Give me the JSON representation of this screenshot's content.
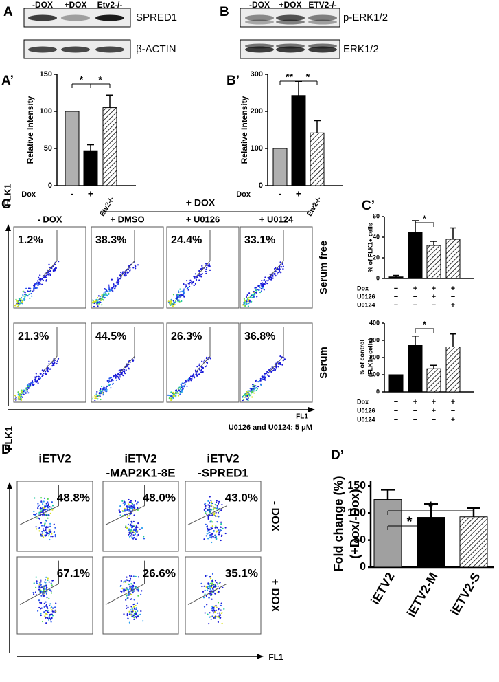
{
  "blots": [
    {
      "label": "A",
      "lanes": [
        "-DOX",
        "+DOX",
        "Etv2-/-"
      ],
      "bands": [
        "SPRED1",
        "β-ACTIN"
      ]
    },
    {
      "label": "B",
      "lanes": [
        "-DOX",
        "+DOX",
        "ETV2-/-"
      ],
      "bands": [
        "p-ERK1/2",
        "ERK1/2"
      ]
    }
  ],
  "flow": [
    {
      "label": "C",
      "group_header": "+ DOX",
      "columns": [
        [
          "- DOX"
        ],
        [
          "+ DMSO"
        ],
        [
          "+ U0126"
        ],
        [
          "+ U0124"
        ]
      ],
      "rows": [
        {
          "label": "Serum free",
          "percentages": [
            "1.2%",
            "38.3%",
            "24.4%",
            "33.1%"
          ]
        },
        {
          "label": "Serum",
          "percentages": [
            "21.3%",
            "44.5%",
            "26.3%",
            "36.8%"
          ]
        }
      ],
      "y_axis": "FLK1",
      "x_axis": "FL1",
      "note": "U0126 and U0124: 5 μM"
    },
    {
      "label": "D",
      "columns": [
        [
          "iETV2"
        ],
        [
          "iETV2",
          "-MAP2K1-8E"
        ],
        [
          "iETV2",
          "-SPRED1"
        ]
      ],
      "rows": [
        {
          "label": "- DOX",
          "percentages": [
            "48.8%",
            "48.0%",
            "43.0%"
          ]
        },
        {
          "label": "+ DOX",
          "percentages": [
            "67.1%",
            "26.6%",
            "35.1%"
          ]
        }
      ],
      "y_axis": "FLK1",
      "x_axis": "FL1"
    }
  ],
  "chart_data": [
    {
      "type": "bar",
      "panel": "A’",
      "ylabel": [
        "Relative Intensity"
      ],
      "row_label": "Dox",
      "categories": [
        "-",
        "+",
        "Etv2-/-"
      ],
      "values": [
        100,
        47,
        105
      ],
      "errors": [
        0,
        8,
        17
      ],
      "colors": [
        "#b0b0b0",
        "#000000",
        "#ffffff"
      ],
      "hatched": [
        false,
        false,
        true
      ],
      "ylim": [
        0,
        150
      ],
      "yticks": [
        0,
        50,
        100,
        150
      ],
      "significance": [
        "*",
        "*"
      ]
    },
    {
      "type": "bar",
      "panel": "B’",
      "ylabel": [
        "Relative Intensity"
      ],
      "row_label": "Dox",
      "categories": [
        "-",
        "+",
        "Etv2-/-"
      ],
      "values": [
        100,
        243,
        142
      ],
      "errors": [
        0,
        38,
        33
      ],
      "colors": [
        "#b0b0b0",
        "#000000",
        "#ffffff"
      ],
      "hatched": [
        false,
        false,
        true
      ],
      "ylim": [
        0,
        300
      ],
      "yticks": [
        0,
        100,
        200,
        300
      ],
      "significance": [
        "**",
        "*"
      ]
    },
    {
      "type": "bar",
      "panel": "C’",
      "ylabel": [
        "% of FLK1+ cells"
      ],
      "values": [
        1.5,
        45,
        32,
        38
      ],
      "errors": [
        1.5,
        11,
        4,
        11
      ],
      "colors": [
        "#000000",
        "#000000",
        "#ffffff",
        "#ffffff"
      ],
      "hatched": [
        false,
        false,
        true,
        true
      ],
      "ylim": [
        0,
        60
      ],
      "yticks": [
        0,
        20,
        40,
        60
      ],
      "significance": [
        "*"
      ],
      "table": [
        {
          "label": "Dox",
          "cells": [
            "−",
            "+",
            "+",
            "+"
          ]
        },
        {
          "label": "U0126",
          "cells": [
            "−",
            "−",
            "+",
            "−"
          ]
        },
        {
          "label": "U0124",
          "cells": [
            "−",
            "−",
            "−",
            "+"
          ]
        }
      ]
    },
    {
      "type": "bar",
      "ylabel": [
        "% of control",
        "(FLK1+ cells)"
      ],
      "values": [
        100,
        270,
        135,
        262
      ],
      "errors": [
        0,
        55,
        20,
        75
      ],
      "colors": [
        "#000000",
        "#000000",
        "#ffffff",
        "#ffffff"
      ],
      "hatched": [
        false,
        false,
        true,
        true
      ],
      "ylim": [
        0,
        400
      ],
      "yticks": [
        0,
        100,
        200,
        300,
        400
      ],
      "significance": [
        "*"
      ],
      "table": [
        {
          "label": "Dox",
          "cells": [
            "−",
            "+",
            "+",
            "+"
          ]
        },
        {
          "label": "U0126",
          "cells": [
            "−",
            "−",
            "+",
            "−"
          ]
        },
        {
          "label": "U0124",
          "cells": [
            "−",
            "−",
            "−",
            "+"
          ]
        }
      ]
    },
    {
      "type": "bar",
      "panel": "D’",
      "ylabel": [
        "Fold change (%)",
        "(+Dox/-Dox)"
      ],
      "categories": [
        "iETV2",
        "iETV2-M",
        "iETV2-S"
      ],
      "values": [
        125,
        92,
        93
      ],
      "errors": [
        18,
        25,
        16
      ],
      "colors": [
        "#a0a0a0",
        "#000000",
        "#ffffff"
      ],
      "hatched": [
        false,
        false,
        true
      ],
      "ylim": [
        0,
        160
      ],
      "yticks": [
        0,
        50,
        100,
        150
      ],
      "significance": [
        "*",
        "*"
      ]
    }
  ]
}
